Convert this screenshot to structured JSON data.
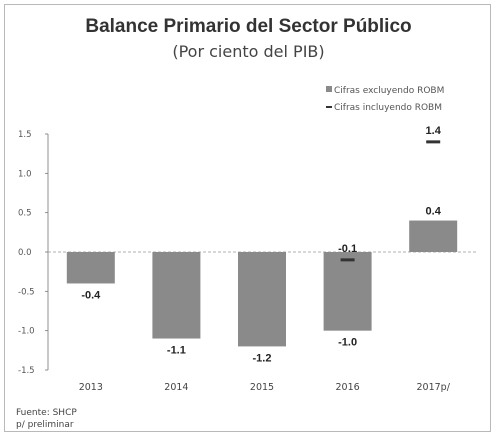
{
  "chart_data": {
    "type": "bar",
    "title": "Balance Primario del Sector Público",
    "subtitle": "(Por ciento del PIB)",
    "categories": [
      "2013",
      "2014",
      "2015",
      "2016",
      "2017p/"
    ],
    "series": [
      {
        "name": "Cifras excluyendo ROBM",
        "kind": "bar",
        "color": "#8a8a8a",
        "values": [
          -0.4,
          -1.1,
          -1.2,
          -1.0,
          0.4
        ],
        "labels": [
          "-0.4",
          "-1.1",
          "-1.2",
          "-1.0",
          "0.4"
        ]
      },
      {
        "name": "Cifras incluyendo ROBM",
        "kind": "marker",
        "color": "#333333",
        "values": [
          null,
          null,
          null,
          -0.1,
          1.4
        ],
        "labels": [
          "",
          "",
          "",
          "-0.1",
          "1.4"
        ]
      }
    ],
    "yticks": [
      "1.5",
      "1.0",
      "0.5",
      "0.0",
      "-0.5",
      "-1.0",
      "-1.5"
    ],
    "ylim": [
      -1.5,
      1.5
    ],
    "legend_position": "top-right",
    "grid": false
  },
  "footer": {
    "source": "Fuente: SHCP",
    "note": "p/ preliminar"
  }
}
